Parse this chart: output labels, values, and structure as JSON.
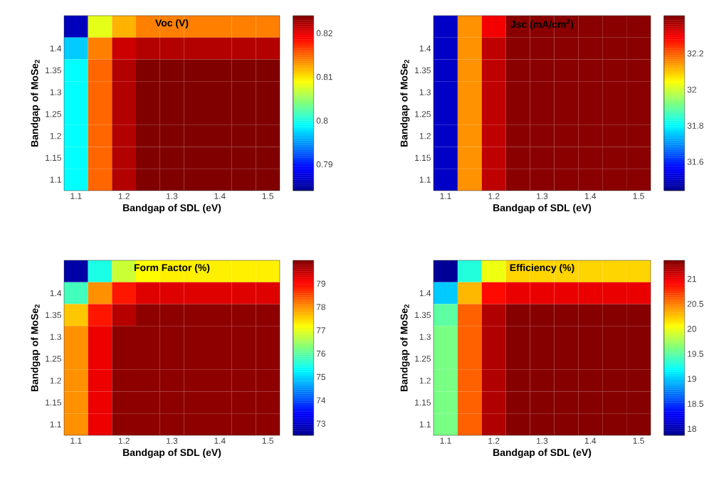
{
  "chart_data": [
    {
      "type": "heatmap",
      "title": "Voc (V)",
      "xlabel": "Bandgap of SDL (eV)",
      "ylabel": "Bandgap of MoSe$_{2}$",
      "categories": [
        "1.1",
        null,
        "1.2",
        null,
        "1.3",
        null,
        "1.4",
        null,
        "1.5"
      ],
      "y_categories": [
        null,
        "1.4",
        "1.35",
        "1.3",
        "1.25",
        "1.2",
        "1.15",
        "1.1"
      ],
      "cells": [
        [
          0.786,
          0.808,
          0.812,
          0.814,
          0.814,
          0.814,
          0.814,
          0.814,
          0.814
        ],
        [
          0.797,
          0.814,
          0.821,
          0.822,
          0.822,
          0.822,
          0.822,
          0.822,
          0.822
        ],
        [
          0.799,
          0.815,
          0.822,
          0.824,
          0.824,
          0.824,
          0.824,
          0.824,
          0.824
        ],
        [
          0.799,
          0.815,
          0.822,
          0.824,
          0.824,
          0.824,
          0.824,
          0.824,
          0.824
        ],
        [
          0.799,
          0.815,
          0.822,
          0.824,
          0.824,
          0.824,
          0.824,
          0.824,
          0.824
        ],
        [
          0.799,
          0.815,
          0.822,
          0.824,
          0.824,
          0.824,
          0.824,
          0.824,
          0.824
        ],
        [
          0.799,
          0.815,
          0.822,
          0.824,
          0.824,
          0.824,
          0.824,
          0.824,
          0.824
        ],
        [
          0.799,
          0.815,
          0.822,
          0.824,
          0.824,
          0.824,
          0.824,
          0.824,
          0.824
        ]
      ],
      "clim": [
        0.784,
        0.824
      ],
      "cticks": [
        0.79,
        0.8,
        0.81,
        0.82
      ]
    },
    {
      "type": "heatmap",
      "title": "Jsc (mA/cm$^{2}$)",
      "xlabel": "Bandgap of SDL (eV)",
      "ylabel": "Bandgap of MoSe$_{2}$",
      "categories": [
        "1.1",
        null,
        "1.2",
        null,
        "1.3",
        null,
        "1.4",
        null,
        "1.5"
      ],
      "y_categories": [
        null,
        "1.4",
        "1.35",
        "1.3",
        "1.25",
        "1.2",
        "1.15",
        "1.1"
      ],
      "cells": [
        [
          31.5,
          32.15,
          32.3,
          32.4,
          32.4,
          32.4,
          32.4,
          32.4,
          32.4
        ],
        [
          31.5,
          32.15,
          32.35,
          32.4,
          32.4,
          32.4,
          32.4,
          32.4,
          32.4
        ],
        [
          31.5,
          32.15,
          32.35,
          32.4,
          32.4,
          32.4,
          32.4,
          32.4,
          32.4
        ],
        [
          31.5,
          32.15,
          32.35,
          32.4,
          32.4,
          32.4,
          32.4,
          32.4,
          32.4
        ],
        [
          31.5,
          32.15,
          32.35,
          32.4,
          32.4,
          32.4,
          32.4,
          32.4,
          32.4
        ],
        [
          31.5,
          32.15,
          32.35,
          32.4,
          32.4,
          32.4,
          32.4,
          32.4,
          32.4
        ],
        [
          31.5,
          32.15,
          32.35,
          32.4,
          32.4,
          32.4,
          32.4,
          32.4,
          32.4
        ],
        [
          31.5,
          32.15,
          32.35,
          32.4,
          32.4,
          32.4,
          32.4,
          32.4,
          32.4
        ]
      ],
      "clim": [
        31.44,
        32.41
      ],
      "cticks": [
        31.6,
        31.8,
        32,
        32.2
      ]
    },
    {
      "type": "heatmap",
      "title": "Form Factor (%)",
      "xlabel": "Bandgap of SDL (eV)",
      "ylabel": "Bandgap of MoSe$_{2}$",
      "categories": [
        "1.1",
        null,
        "1.2",
        null,
        "1.3",
        null,
        "1.4",
        null,
        "1.5"
      ],
      "y_categories": [
        null,
        "1.4",
        "1.35",
        "1.3",
        "1.25",
        "1.2",
        "1.15",
        "1.1"
      ],
      "cells": [
        [
          72.7,
          75.5,
          76.8,
          77.2,
          77.3,
          77.3,
          77.3,
          77.3,
          77.3
        ],
        [
          75.8,
          78.0,
          78.9,
          79.3,
          79.3,
          79.3,
          79.3,
          79.3,
          79.3
        ],
        [
          77.6,
          78.9,
          79.6,
          79.9,
          79.9,
          79.9,
          79.9,
          79.9,
          79.9
        ],
        [
          78.0,
          79.2,
          79.9,
          79.9,
          79.9,
          79.9,
          79.9,
          79.9,
          79.9
        ],
        [
          78.0,
          79.2,
          79.9,
          79.9,
          79.9,
          79.9,
          79.9,
          79.9,
          79.9
        ],
        [
          78.0,
          79.2,
          79.9,
          79.9,
          79.9,
          79.9,
          79.9,
          79.9,
          79.9
        ],
        [
          78.0,
          79.2,
          79.9,
          79.9,
          79.9,
          79.9,
          79.9,
          79.9,
          79.9
        ],
        [
          78.0,
          79.2,
          79.9,
          79.9,
          79.9,
          79.9,
          79.9,
          79.9,
          79.9
        ]
      ],
      "clim": [
        72.5,
        80
      ],
      "cticks": [
        73,
        74,
        75,
        76,
        77,
        78,
        79
      ]
    },
    {
      "type": "heatmap",
      "title": "Efficiency  (%)",
      "xlabel": "Bandgap of SDL (eV)",
      "ylabel": "Bandgap of MoSe$_{2}$",
      "categories": [
        "1.1",
        null,
        "1.2",
        null,
        "1.3",
        null,
        "1.4",
        null,
        "1.5"
      ],
      "y_categories": [
        null,
        "1.4",
        "1.35",
        "1.3",
        "1.25",
        "1.2",
        "1.15",
        "1.1"
      ],
      "cells": [
        [
          17.9,
          19.3,
          20.0,
          20.2,
          20.2,
          20.2,
          20.2,
          20.2,
          20.2
        ],
        [
          19.0,
          20.3,
          20.9,
          21.0,
          21.0,
          21.0,
          21.0,
          21.0,
          21.0
        ],
        [
          19.5,
          20.6,
          21.2,
          21.35,
          21.35,
          21.35,
          21.35,
          21.35,
          21.35
        ],
        [
          19.6,
          20.6,
          21.2,
          21.35,
          21.35,
          21.35,
          21.35,
          21.35,
          21.35
        ],
        [
          19.6,
          20.6,
          21.2,
          21.35,
          21.35,
          21.35,
          21.35,
          21.35,
          21.35
        ],
        [
          19.6,
          20.6,
          21.2,
          21.35,
          21.35,
          21.35,
          21.35,
          21.35,
          21.35
        ],
        [
          19.6,
          20.6,
          21.2,
          21.35,
          21.35,
          21.35,
          21.35,
          21.35,
          21.35
        ],
        [
          19.6,
          20.6,
          21.2,
          21.35,
          21.35,
          21.35,
          21.35,
          21.35,
          21.35
        ]
      ],
      "clim": [
        17.87,
        21.37
      ],
      "cticks": [
        18,
        18.5,
        19,
        19.5,
        20,
        20.5,
        21
      ]
    }
  ]
}
